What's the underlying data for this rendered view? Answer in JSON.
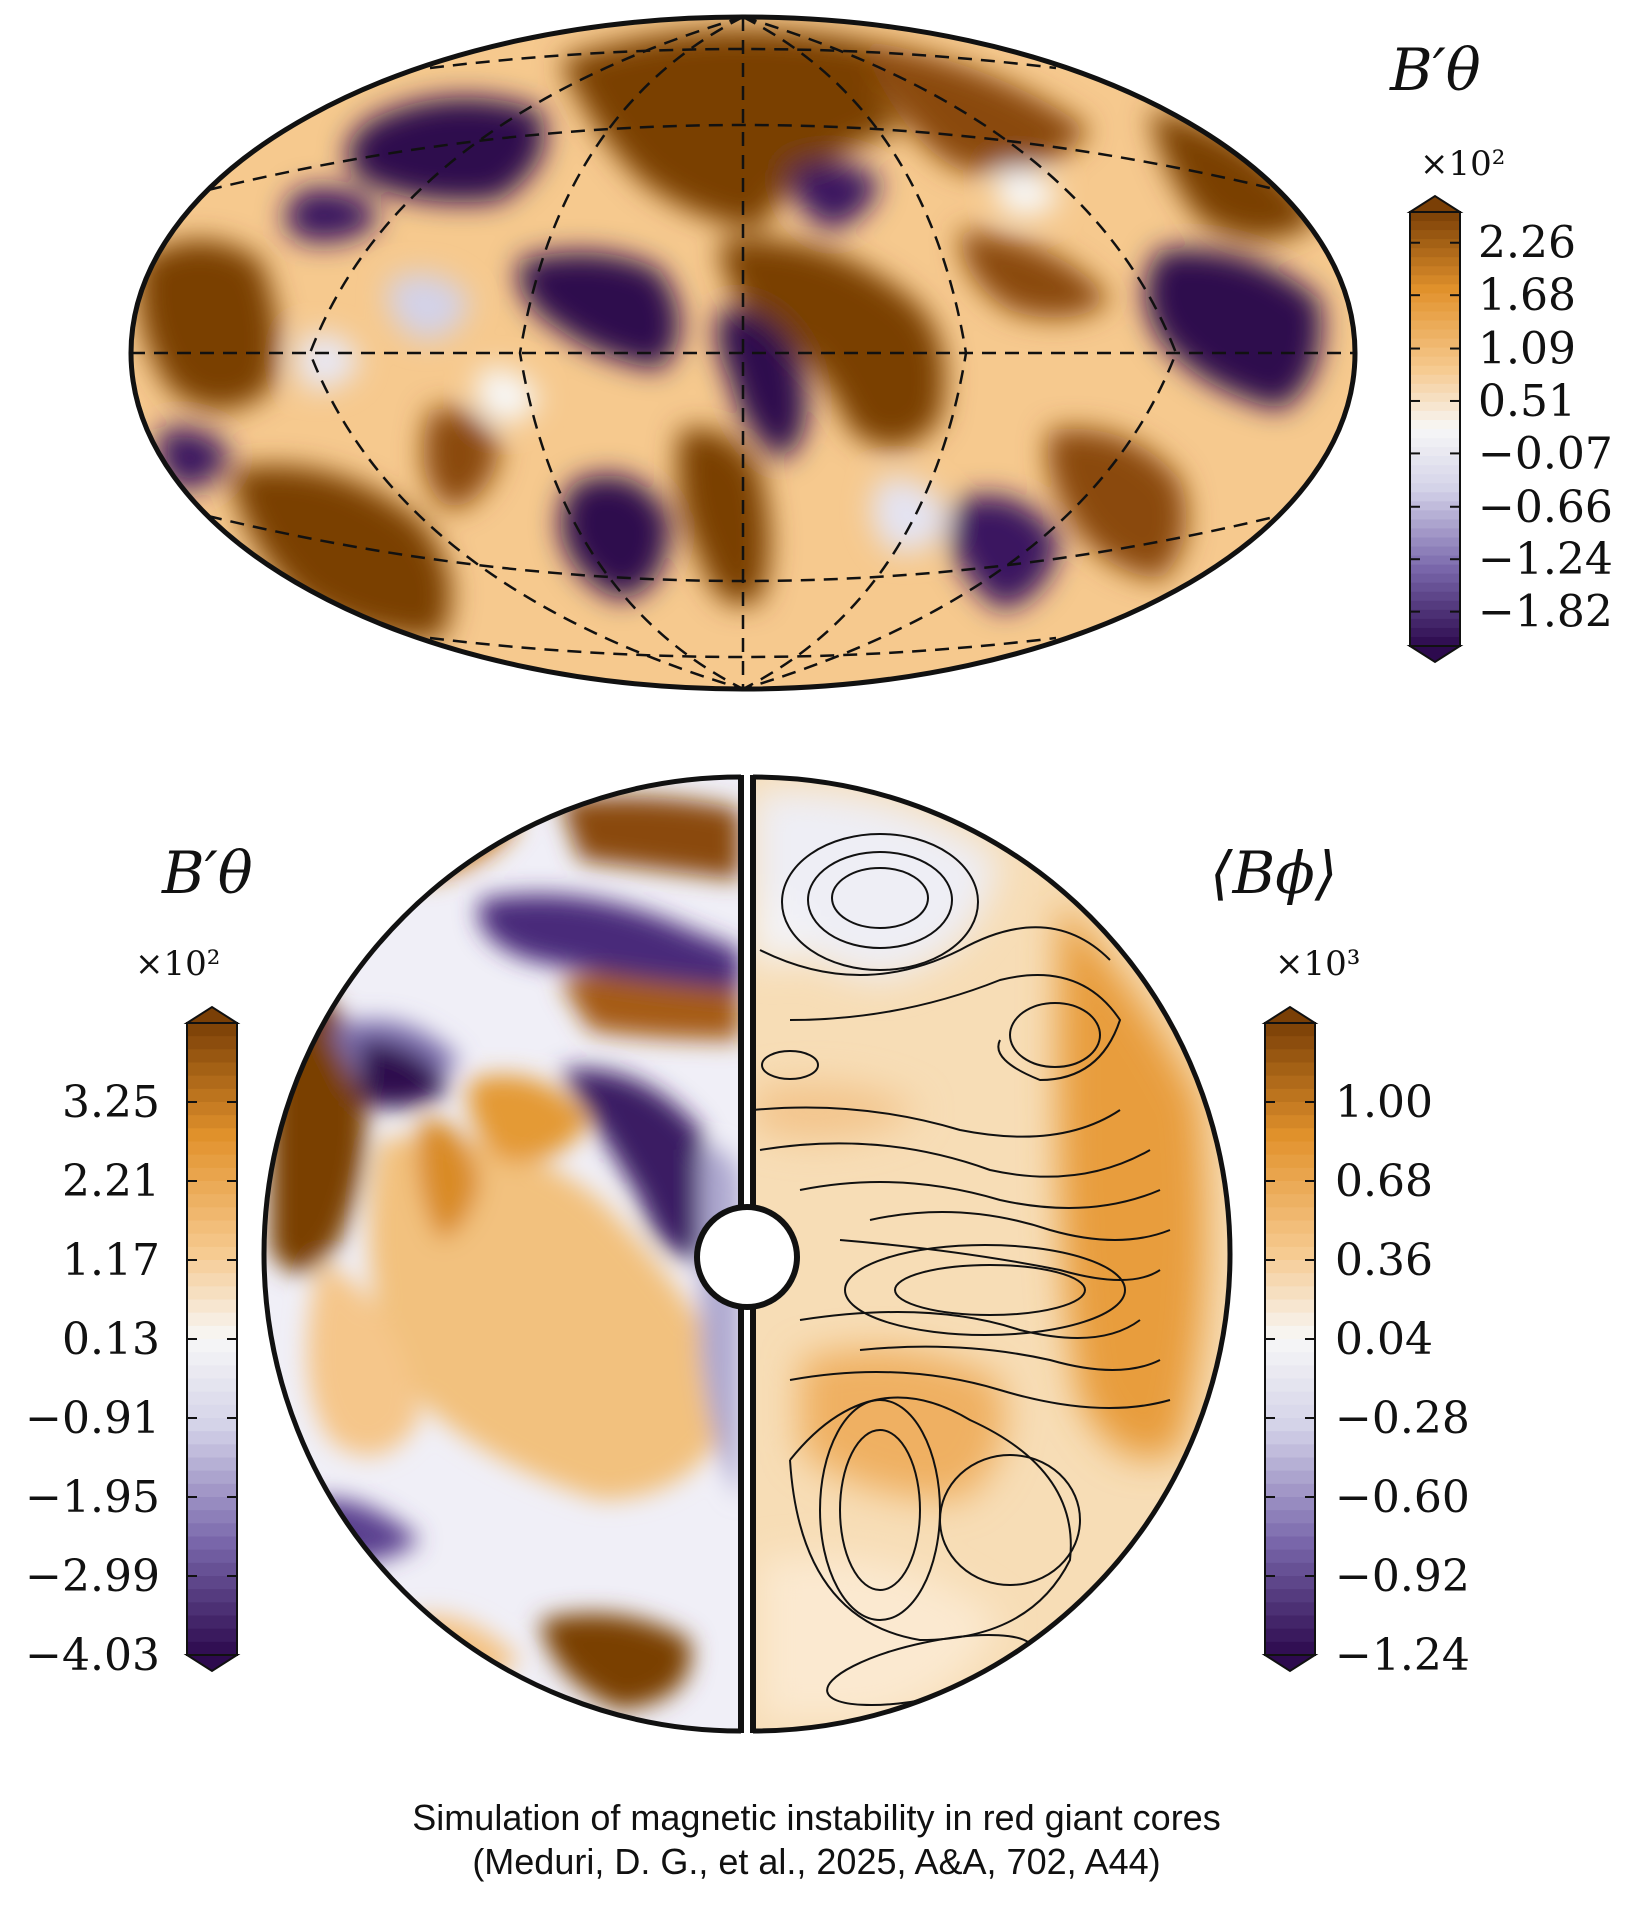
{
  "caption": {
    "line1": "Simulation of magnetic instability in red giant cores",
    "line2": "(Meduri, D. G., et al., 2025, A&A, 702, A44)"
  },
  "colors": {
    "purple_dark": "#2d0a4e",
    "purple_mid": "#7a68ac",
    "purple_light": "#d3d2e8",
    "white": "#f7f7f7",
    "orange_light": "#f6c98e",
    "orange_mid": "#e2922c",
    "brown_dark": "#7a3f06"
  },
  "chart_data": [
    {
      "type": "heatmap",
      "projection": "Mollweide (Hammer) map",
      "title": "",
      "colorbar": {
        "label": "B′θ",
        "exponent": "×10²",
        "ticks": [
          "2.26",
          "1.68",
          "1.09",
          "0.51",
          "−0.07",
          "−0.66",
          "−1.24",
          "−1.82"
        ],
        "range": [
          -2.2,
          2.6
        ],
        "extend": "both"
      },
      "grid": true,
      "grid_style": "dashed"
    },
    {
      "type": "heatmap",
      "projection": "meridional slice (left half)",
      "title": "",
      "colorbar": {
        "label": "B′θ",
        "exponent": "×10²",
        "ticks": [
          "3.25",
          "2.21",
          "1.17",
          "0.13",
          "−0.91",
          "−1.95",
          "−2.99",
          "−4.03"
        ],
        "range": [
          -4.03,
          4.29
        ],
        "extend": "both"
      }
    },
    {
      "type": "heatmap",
      "projection": "meridional slice (right half) with contour lines",
      "title": "",
      "colorbar": {
        "label": "⟨Bϕ⟩",
        "exponent": "×10³",
        "ticks": [
          "1.00",
          "0.68",
          "0.36",
          "0.04",
          "−0.28",
          "−0.60",
          "−0.92",
          "−1.24"
        ],
        "range": [
          -1.24,
          1.32
        ],
        "extend": "both"
      }
    }
  ]
}
